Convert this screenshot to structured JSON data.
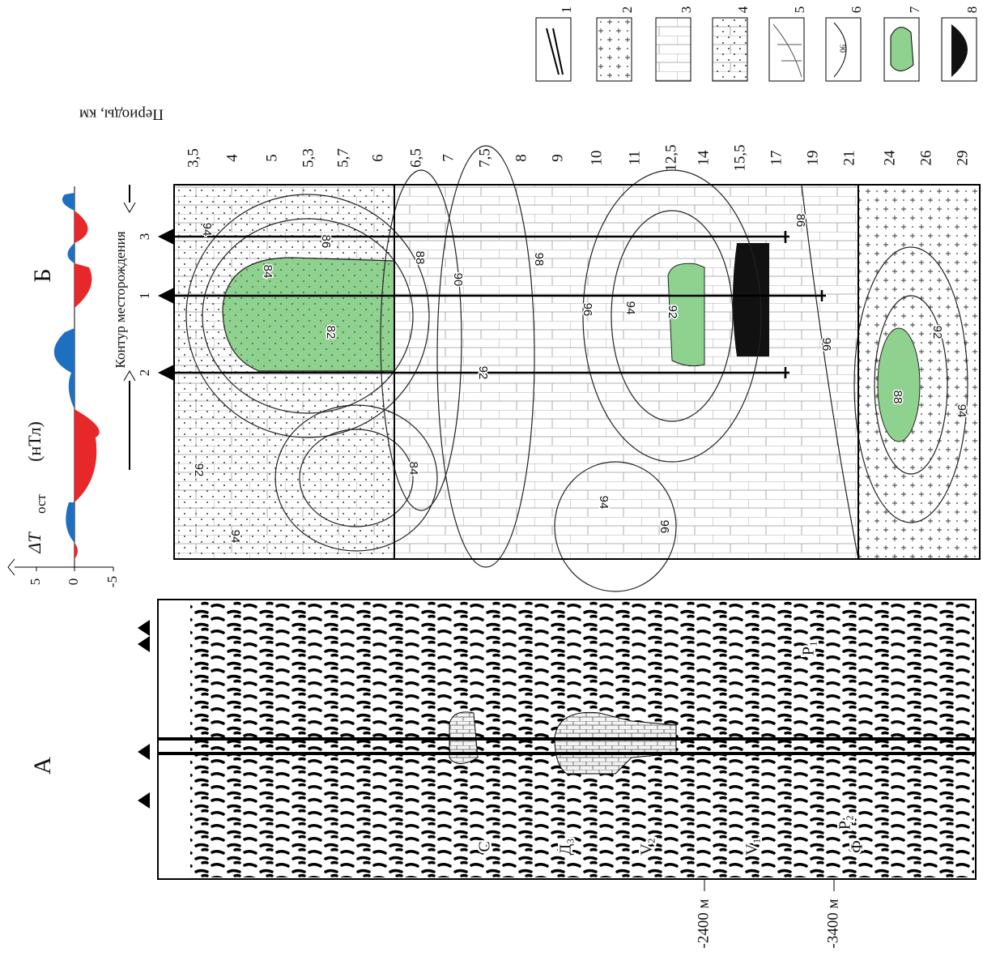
{
  "panel_a": {
    "label": "А",
    "layers": [
      "P₂",
      "P₁",
      "C",
      "Д₃",
      "V₂",
      "V₁",
      "Ф"
    ],
    "depths": [
      "-2400 м",
      "-3400 м"
    ]
  },
  "panel_b": {
    "label": "Б",
    "magnetic_axis": {
      "symbol": "ΔT",
      "subscript": "ост",
      "unit": "(нТл)",
      "ticks": [
        "5",
        "0",
        "-5"
      ]
    },
    "wells": [
      "3",
      "1",
      "2"
    ],
    "field_contour": "Контур месторождения",
    "periods_title": "Периоды, км",
    "periods": [
      "3,5",
      "4",
      "5",
      "5,3",
      "5,7",
      "6",
      "6,5",
      "7",
      "7,5",
      "8",
      "9",
      "10",
      "11",
      "12,5",
      "14",
      "15,5",
      "17",
      "19",
      "21",
      "24",
      "26",
      "29"
    ],
    "contour_labels": [
      "94",
      "86",
      "84",
      "82",
      "88",
      "90",
      "92",
      "98",
      "96",
      "94",
      "92",
      "86",
      "96",
      "88",
      "92",
      "94",
      "84",
      "92",
      "94",
      "94",
      "96"
    ]
  },
  "legend": {
    "items": [
      "1",
      "2",
      "3",
      "4",
      "5",
      "6",
      "7",
      "8"
    ],
    "sample_label": "90"
  }
}
